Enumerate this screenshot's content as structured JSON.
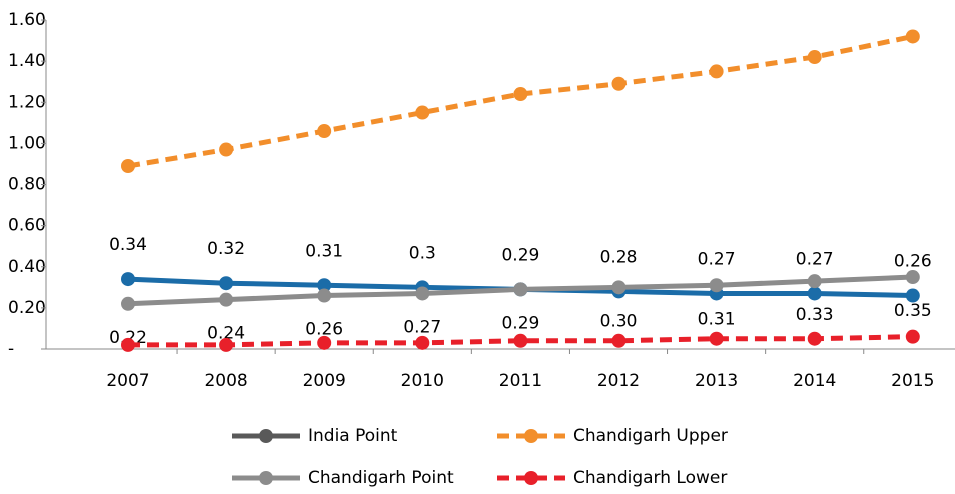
{
  "chart_data": {
    "type": "line",
    "categories": [
      "2007",
      "2008",
      "2009",
      "2010",
      "2011",
      "2012",
      "2013",
      "2014",
      "2015"
    ],
    "series": [
      {
        "name": "India Point",
        "color": "#1b6ca8",
        "legend_color": "#595959",
        "dash": false,
        "label_side": "above",
        "values": [
          0.34,
          0.32,
          0.31,
          0.3,
          0.29,
          0.28,
          0.27,
          0.27,
          0.26
        ]
      },
      {
        "name": "Chandigarh Upper",
        "color": "#f28e2b",
        "dash": true,
        "values": [
          0.89,
          0.97,
          1.06,
          1.15,
          1.24,
          1.29,
          1.35,
          1.42,
          1.52
        ]
      },
      {
        "name": "Chandigarh Point",
        "color": "#8c8c8c",
        "dash": false,
        "label_side": "below",
        "values": [
          0.22,
          0.24,
          0.26,
          0.27,
          0.29,
          0.3,
          0.31,
          0.33,
          0.35
        ],
        "value_labels": [
          "0.22",
          "0.24",
          "0.26",
          "0.27",
          "0.29",
          "0.30",
          "0.31",
          "0.33",
          "0.35"
        ]
      },
      {
        "name": "Chandigarh Lower",
        "color": "#e8202a",
        "dash": true,
        "values": [
          0.02,
          0.02,
          0.03,
          0.03,
          0.04,
          0.04,
          0.05,
          0.05,
          0.06
        ]
      }
    ],
    "ylim": [
      0,
      1.6
    ],
    "yticks": [
      {
        "value": 0,
        "label": "-"
      },
      {
        "value": 0.2,
        "label": "0.20"
      },
      {
        "value": 0.4,
        "label": "0.40"
      },
      {
        "value": 0.6,
        "label": "0.60"
      },
      {
        "value": 0.8,
        "label": "0.80"
      },
      {
        "value": 1.0,
        "label": "1.00"
      },
      {
        "value": 1.2,
        "label": "1.20"
      },
      {
        "value": 1.4,
        "label": "1.40"
      },
      {
        "value": 1.6,
        "label": "1.60"
      }
    ],
    "grid": false,
    "legend": "bottom"
  }
}
